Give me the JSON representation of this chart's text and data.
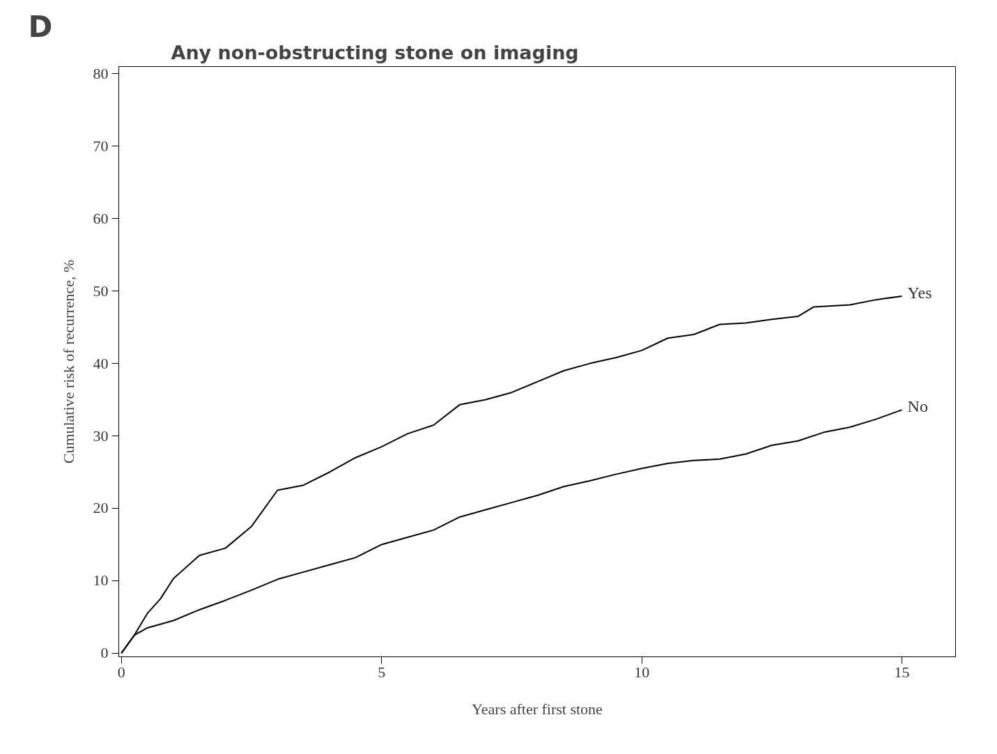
{
  "chart_data": {
    "type": "line",
    "title": "Any non-obstructing stone on imaging",
    "xlabel": "Years after first stone",
    "ylabel": "Cumulative risk of recurrence, %",
    "annotations": [
      "D"
    ],
    "xlim": [
      -0.05,
      16.03
    ],
    "ylim": [
      -0.5,
      81
    ],
    "xticks": [
      0,
      5,
      10,
      15
    ],
    "yticks": [
      0,
      10,
      20,
      30,
      40,
      50,
      60,
      70,
      80
    ],
    "grid": false,
    "legend": false,
    "marker": "none",
    "line_style": "solid",
    "series": [
      {
        "name": "Yes",
        "color": "#000000",
        "x": [
          0,
          0.25,
          0.5,
          0.75,
          1,
          1.5,
          2,
          2.5,
          3,
          3.5,
          4,
          4.5,
          5,
          5.5,
          6,
          6.5,
          7,
          7.5,
          8,
          8.5,
          9,
          9.5,
          10,
          10.5,
          11,
          11.5,
          12,
          12.5,
          13,
          13.3,
          14,
          14.5,
          15
        ],
        "values": [
          0,
          2.5,
          5.5,
          7.5,
          10.3,
          13.5,
          14.5,
          17.5,
          22.5,
          23.2,
          25,
          27,
          28.5,
          30.3,
          31.5,
          34.3,
          35,
          36,
          37.5,
          39,
          40,
          40.8,
          41.8,
          43.5,
          44,
          45.4,
          45.6,
          46.1,
          46.5,
          47.8,
          48.1,
          48.8,
          49.3
        ]
      },
      {
        "name": "No",
        "color": "#000000",
        "x": [
          0,
          0.25,
          0.5,
          0.75,
          1,
          1.5,
          2,
          2.5,
          3,
          3.5,
          4,
          4.5,
          5,
          5.5,
          6,
          6.5,
          7,
          7.5,
          8,
          8.5,
          9,
          9.5,
          10,
          10.5,
          11,
          11.5,
          12,
          12.5,
          13,
          13.5,
          14,
          14.5,
          15
        ],
        "values": [
          0,
          2.5,
          3.5,
          4,
          4.5,
          6,
          7.3,
          8.7,
          10.2,
          11.2,
          12.2,
          13.2,
          15,
          16,
          17,
          18.8,
          19.8,
          20.8,
          21.8,
          23,
          23.8,
          24.7,
          25.5,
          26.2,
          26.6,
          26.8,
          27.5,
          28.7,
          29.3,
          30.5,
          31.2,
          32.3,
          33.6
        ]
      }
    ]
  }
}
